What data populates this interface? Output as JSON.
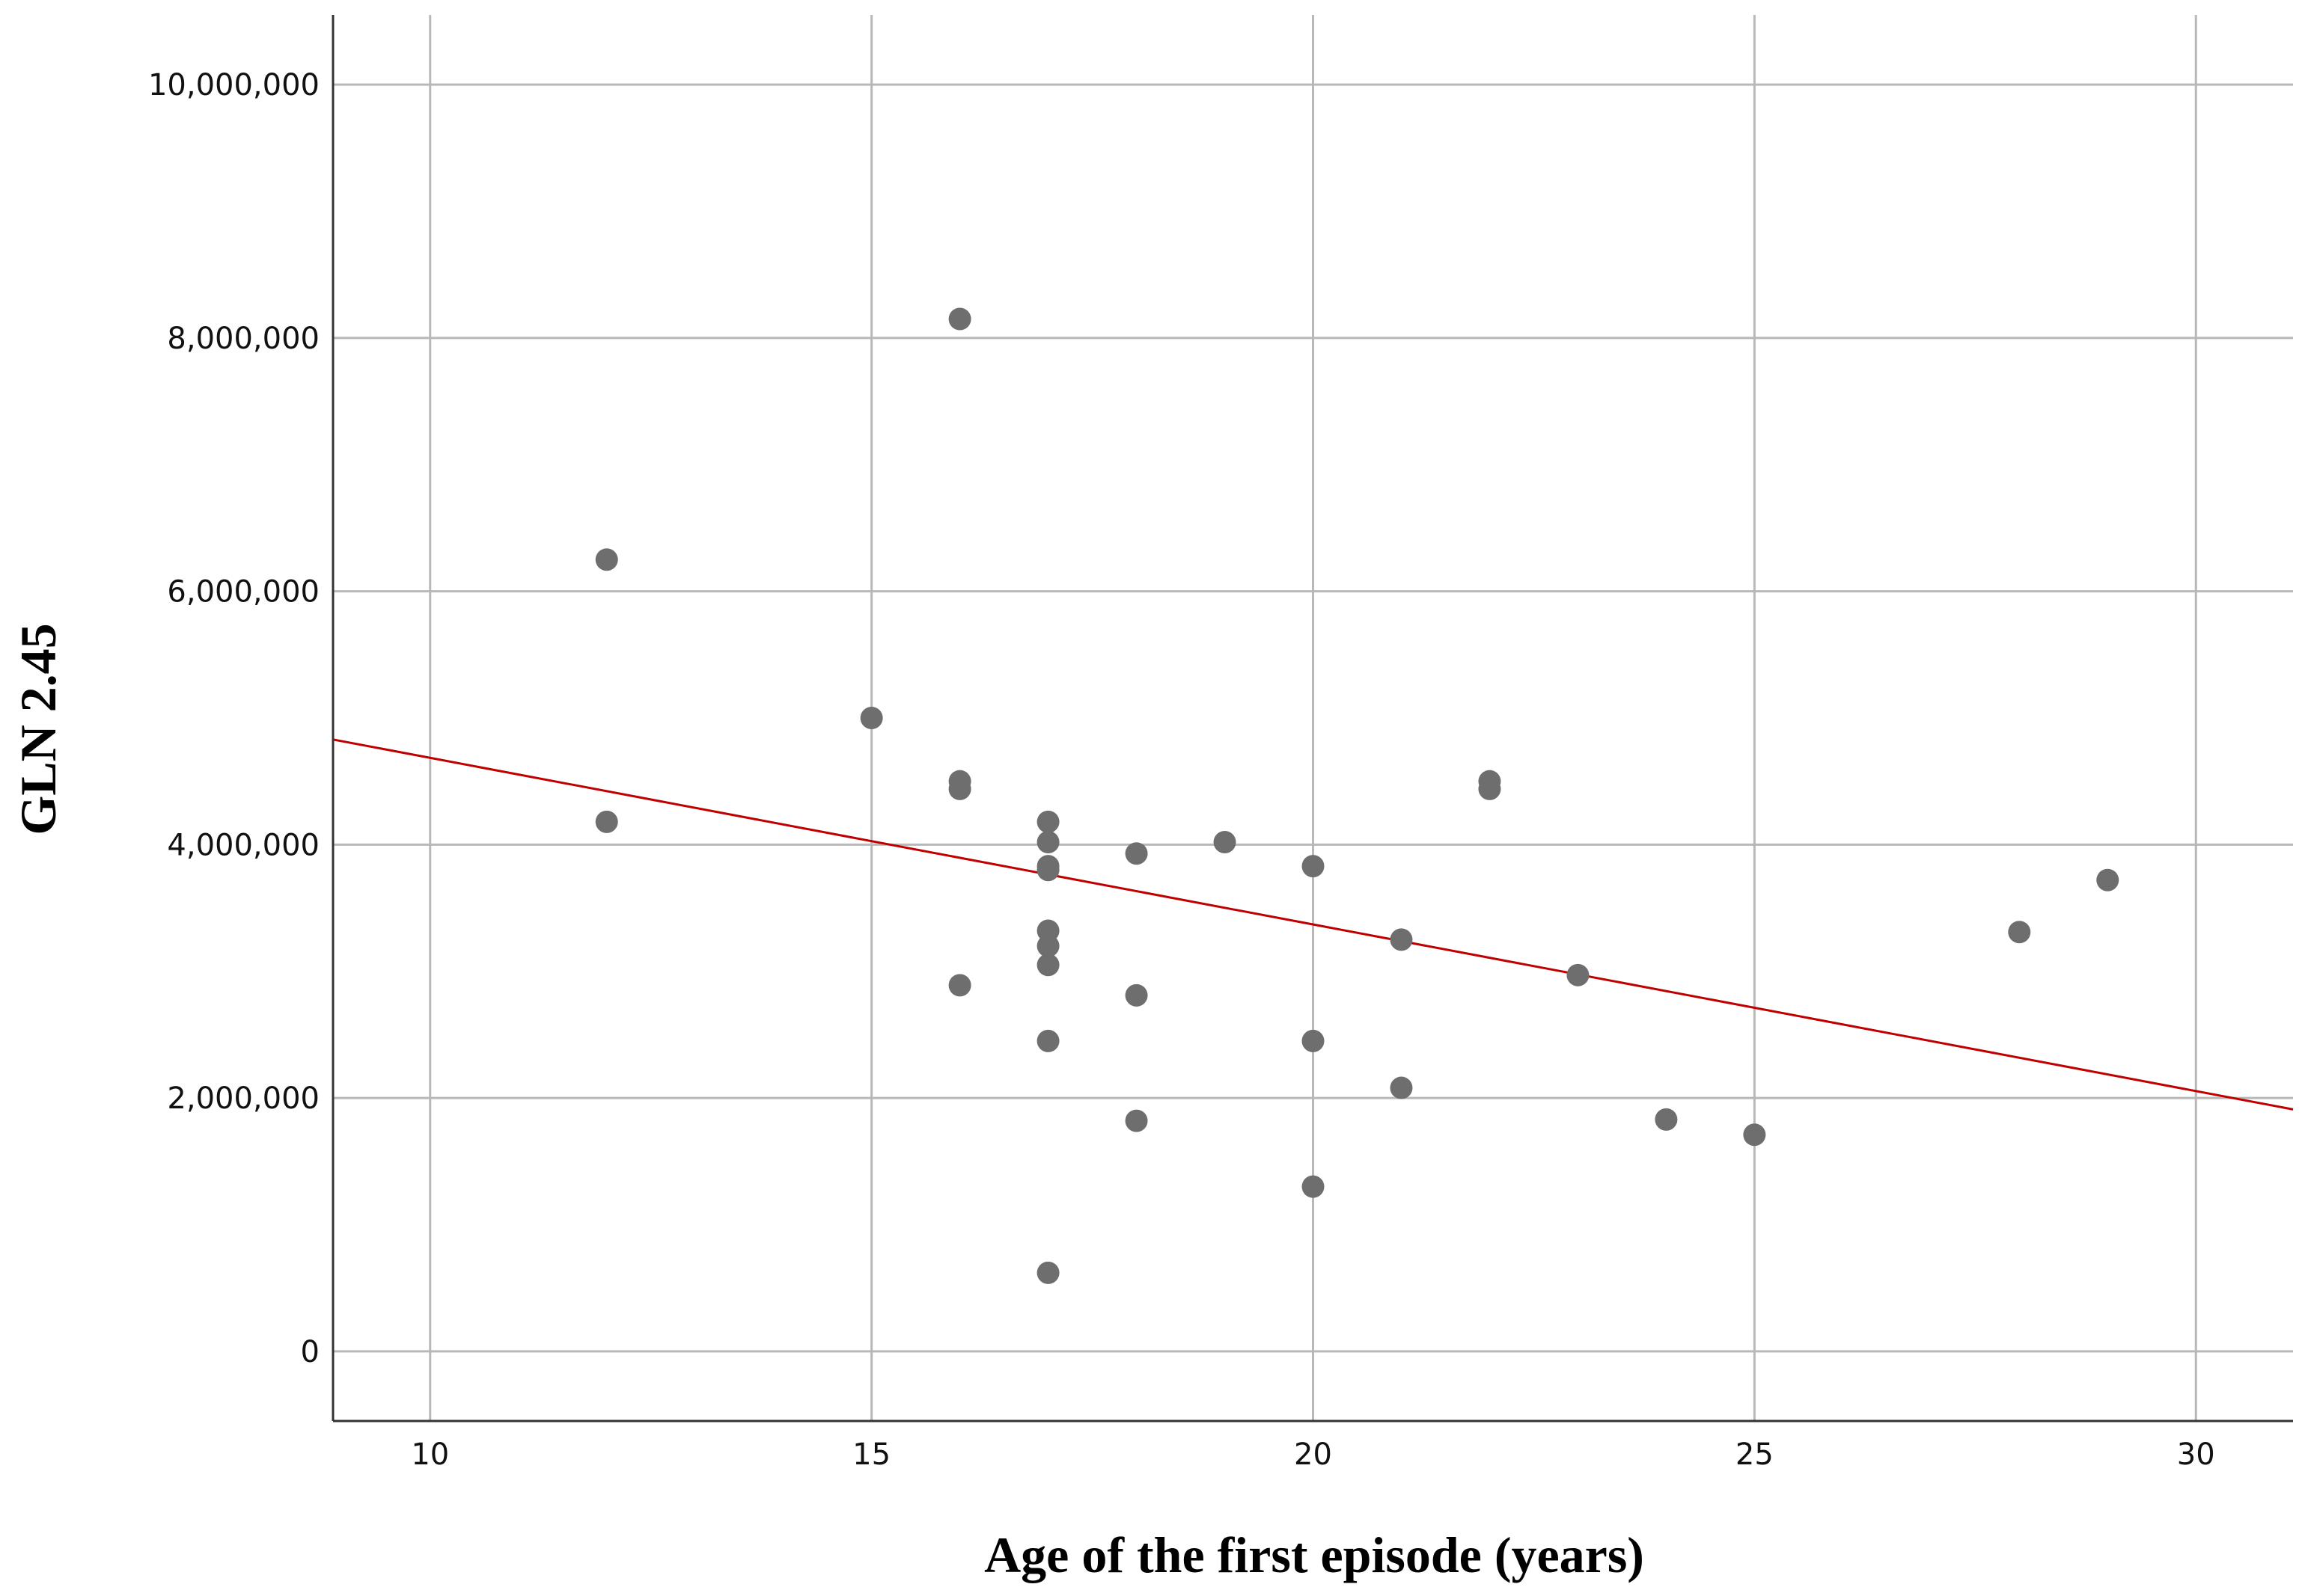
{
  "chart_data": {
    "type": "scatter",
    "title": "",
    "xlabel": "Age of the first episode (years)",
    "ylabel": "GLN 2.45",
    "xlim": [
      8.9,
      31.1
    ],
    "ylim": [
      -550000,
      10550000
    ],
    "x_ticks": [
      10,
      15,
      20,
      25,
      30
    ],
    "x_tick_labels": [
      "10",
      "15",
      "20",
      "25",
      "30"
    ],
    "y_ticks": [
      0,
      2000000,
      4000000,
      6000000,
      8000000,
      10000000
    ],
    "y_tick_labels": [
      "0",
      "2,000,000",
      "4,000,000",
      "6,000,000",
      "8,000,000",
      "10,000,000"
    ],
    "grid": true,
    "points": [
      {
        "x": 12,
        "y": 6250000
      },
      {
        "x": 12,
        "y": 4180000
      },
      {
        "x": 15,
        "y": 5000000
      },
      {
        "x": 16,
        "y": 8150000
      },
      {
        "x": 16,
        "y": 4500000
      },
      {
        "x": 16,
        "y": 4440000
      },
      {
        "x": 16,
        "y": 2890000
      },
      {
        "x": 17,
        "y": 4180000
      },
      {
        "x": 17,
        "y": 4020000
      },
      {
        "x": 17,
        "y": 3830000
      },
      {
        "x": 17,
        "y": 3800000
      },
      {
        "x": 17,
        "y": 3320000
      },
      {
        "x": 17,
        "y": 3200000
      },
      {
        "x": 17,
        "y": 3050000
      },
      {
        "x": 17,
        "y": 2450000
      },
      {
        "x": 17,
        "y": 620000
      },
      {
        "x": 18,
        "y": 3930000
      },
      {
        "x": 18,
        "y": 2810000
      },
      {
        "x": 18,
        "y": 1820000
      },
      {
        "x": 19,
        "y": 4020000
      },
      {
        "x": 20,
        "y": 3830000
      },
      {
        "x": 20,
        "y": 2450000
      },
      {
        "x": 20,
        "y": 1300000
      },
      {
        "x": 21,
        "y": 3250000
      },
      {
        "x": 21,
        "y": 2080000
      },
      {
        "x": 22,
        "y": 4500000
      },
      {
        "x": 22,
        "y": 4440000
      },
      {
        "x": 23,
        "y": 2970000
      },
      {
        "x": 24,
        "y": 1830000
      },
      {
        "x": 25,
        "y": 1710000
      },
      {
        "x": 28,
        "y": 3310000
      },
      {
        "x": 29,
        "y": 3720000
      }
    ],
    "fit_line": {
      "x": [
        8.9,
        31.1
      ],
      "y": [
        4830000,
        1910000
      ]
    },
    "colors": {
      "point": "#6e6e6e",
      "fit_line": "#c00000",
      "grid": "#b8b8b8",
      "axis": "#333333"
    }
  }
}
